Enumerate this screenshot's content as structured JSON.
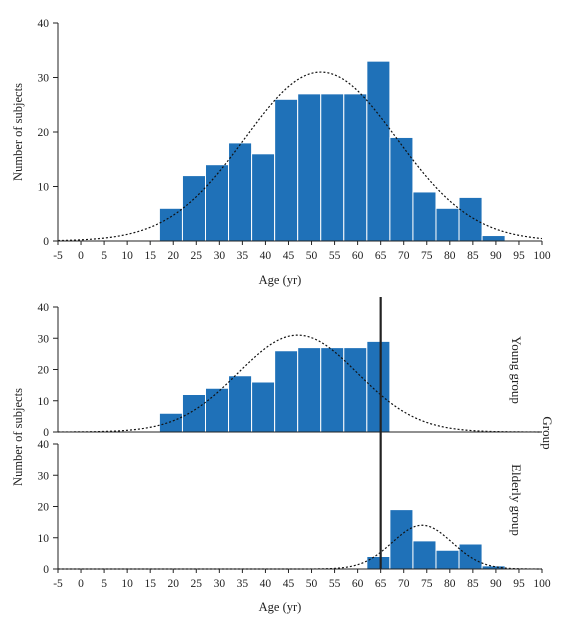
{
  "colors": {
    "bar": "#1f71b8",
    "bar_edge": "#ffffff",
    "axis": "#222222",
    "curve": "#111111",
    "cutoff_line": "#222222",
    "background": "#ffffff"
  },
  "chart_data": [
    {
      "type": "bar",
      "title": "",
      "xlabel": "Age (yr)",
      "ylabel": "Number of subjects",
      "xlim": [
        -5,
        100
      ],
      "ylim": [
        0,
        40
      ],
      "xticks": [
        -5,
        0,
        5,
        10,
        15,
        20,
        25,
        30,
        35,
        40,
        45,
        50,
        55,
        60,
        65,
        70,
        75,
        80,
        85,
        90,
        95,
        100
      ],
      "yticks": [
        0,
        10,
        20,
        30,
        40
      ],
      "bin_width": 5,
      "bins": [
        {
          "start": 17,
          "value": 6
        },
        {
          "start": 22,
          "value": 12
        },
        {
          "start": 27,
          "value": 14
        },
        {
          "start": 32,
          "value": 18
        },
        {
          "start": 37,
          "value": 16
        },
        {
          "start": 42,
          "value": 26
        },
        {
          "start": 47,
          "value": 27
        },
        {
          "start": 52,
          "value": 27
        },
        {
          "start": 57,
          "value": 27
        },
        {
          "start": 62,
          "value": 33
        },
        {
          "start": 67,
          "value": 19
        },
        {
          "start": 72,
          "value": 9
        },
        {
          "start": 77,
          "value": 6
        },
        {
          "start": 82,
          "value": 8
        },
        {
          "start": 87,
          "value": 1
        }
      ],
      "normal_curve": {
        "mean": 52,
        "sd": 16.5,
        "peak": 31
      },
      "grid": false,
      "legend": "none"
    },
    {
      "type": "bar",
      "title": "",
      "xlabel": "Age (yr)",
      "ylabel": "Number of subjects",
      "facet_label": "Group",
      "xlim": [
        -5,
        100
      ],
      "ylim": [
        0,
        40
      ],
      "xticks": [
        -5,
        0,
        5,
        10,
        15,
        20,
        25,
        30,
        35,
        40,
        45,
        50,
        55,
        60,
        65,
        70,
        75,
        80,
        85,
        90,
        95,
        100
      ],
      "yticks": [
        0,
        10,
        20,
        30,
        40
      ],
      "bin_width": 5,
      "cutoff_age": 65,
      "panels": [
        {
          "label": "Young group",
          "bins": [
            {
              "start": 17,
              "value": 6
            },
            {
              "start": 22,
              "value": 12
            },
            {
              "start": 27,
              "value": 14
            },
            {
              "start": 32,
              "value": 18
            },
            {
              "start": 37,
              "value": 16
            },
            {
              "start": 42,
              "value": 26
            },
            {
              "start": 47,
              "value": 27
            },
            {
              "start": 52,
              "value": 27
            },
            {
              "start": 57,
              "value": 27
            },
            {
              "start": 62,
              "value": 29
            }
          ],
          "normal_curve": {
            "mean": 47,
            "sd": 13,
            "peak": 31
          }
        },
        {
          "label": "Elderly group",
          "bins": [
            {
              "start": 62,
              "value": 4
            },
            {
              "start": 67,
              "value": 19
            },
            {
              "start": 72,
              "value": 9
            },
            {
              "start": 77,
              "value": 6
            },
            {
              "start": 82,
              "value": 8
            },
            {
              "start": 87,
              "value": 1
            }
          ],
          "normal_curve": {
            "mean": 74,
            "sd": 6.5,
            "peak": 14
          }
        }
      ],
      "grid": false,
      "legend": "none"
    }
  ]
}
